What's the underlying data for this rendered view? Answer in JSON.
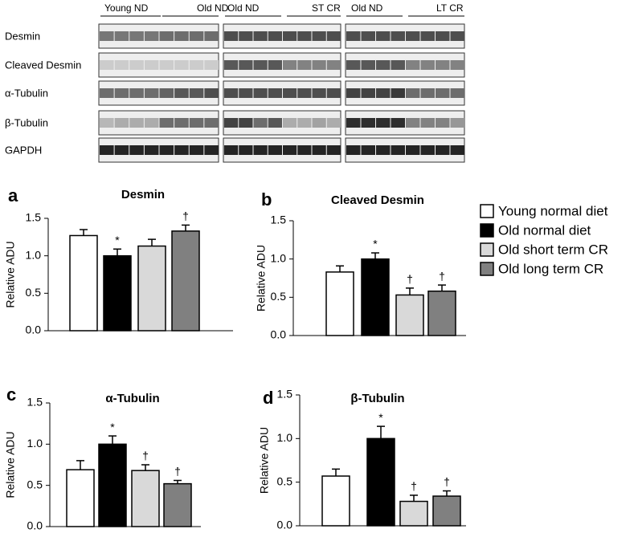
{
  "blot": {
    "headers": [
      "Young ND",
      "Old ND",
      "Old ND",
      "ST CR",
      "Old ND",
      "LT CR"
    ],
    "rows": [
      "Desmin",
      "Cleaved Desmin",
      "α-Tubulin",
      "β-Tubulin",
      "GAPDH"
    ]
  },
  "legend": [
    {
      "name": "Young normal diet",
      "color": "#ffffff"
    },
    {
      "name": "Old normal diet",
      "color": "#000000"
    },
    {
      "name": "Old short term CR",
      "color": "#d9d9d9"
    },
    {
      "name": "Old long term CR",
      "color": "#808080"
    }
  ],
  "chart_data": [
    {
      "type": "bar",
      "panel": "a",
      "title": "Desmin",
      "y_label": "Relative ADU",
      "values": [
        1.27,
        1.0,
        1.13,
        1.33
      ],
      "errors": [
        0.08,
        0.09,
        0.09,
        0.08
      ],
      "markers": [
        null,
        "*",
        null,
        "†"
      ],
      "ylim": [
        0,
        1.5
      ],
      "yticks": [
        {
          "value": 0,
          "label": "0.0"
        },
        {
          "value": 0.5,
          "label": "0.5"
        },
        {
          "value": 1,
          "label": "1.0"
        },
        {
          "value": 1.5,
          "label": "1.5"
        }
      ]
    },
    {
      "type": "bar",
      "panel": "b",
      "title": "Cleaved Desmin",
      "y_label": "Relative ADU",
      "values": [
        0.83,
        1.0,
        0.53,
        0.58
      ],
      "errors": [
        0.08,
        0.08,
        0.09,
        0.08
      ],
      "markers": [
        null,
        "*",
        "†",
        "†"
      ],
      "ylim": [
        0,
        1.5
      ],
      "yticks": [
        {
          "value": 0,
          "label": "0.0"
        },
        {
          "value": 0.5,
          "label": "0.5"
        },
        {
          "value": 1,
          "label": "1.0"
        },
        {
          "value": 1.5,
          "label": "1.5"
        }
      ]
    },
    {
      "type": "bar",
      "panel": "c",
      "title": "α-Tubulin",
      "y_label": "Relative ADU",
      "values": [
        0.69,
        1.0,
        0.68,
        0.52
      ],
      "errors": [
        0.11,
        0.1,
        0.07,
        0.04
      ],
      "markers": [
        null,
        "*",
        "†",
        "†"
      ],
      "ylim": [
        0,
        1.5
      ],
      "yticks": [
        {
          "value": 0,
          "label": "0.0"
        },
        {
          "value": 0.5,
          "label": "0.5"
        },
        {
          "value": 1,
          "label": "1.0"
        },
        {
          "value": 1.5,
          "label": "1.5"
        }
      ]
    },
    {
      "type": "bar",
      "panel": "d",
      "title": "β-Tubulin",
      "y_label": "Relative ADU",
      "values": [
        0.57,
        1.0,
        0.28,
        0.34
      ],
      "errors": [
        0.08,
        0.14,
        0.07,
        0.06
      ],
      "markers": [
        null,
        "*",
        "†",
        "†"
      ],
      "ylim": [
        0,
        1.5
      ],
      "yticks": [
        {
          "value": 0,
          "label": "0.0"
        },
        {
          "value": 0.5,
          "label": "0.5"
        },
        {
          "value": 1,
          "label": "1.0"
        },
        {
          "value": 1.5,
          "label": "1.5"
        }
      ]
    }
  ]
}
